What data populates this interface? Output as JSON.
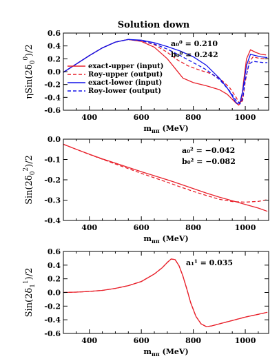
{
  "title": "Solution down",
  "title_color": "#ff0000",
  "colors": {
    "red": "#e8202a",
    "blue": "#1010e8"
  },
  "chart_data": [
    {
      "type": "line",
      "ylabel": "ηSin(2δ₀⁰)/2",
      "ylabel_parts": {
        "pre": "ηSin(2δ",
        "sup": "0",
        "sub": "0",
        "post": ")/2"
      },
      "xlabel": "m_ππ (MeV)",
      "xlim": [
        300,
        1090
      ],
      "ylim": [
        -0.6,
        0.6
      ],
      "yticks": [
        "0.6",
        "0.4",
        "0.2",
        "0.0",
        "-0.2",
        "-0.4",
        "-0.6"
      ],
      "ytick_values": [
        0.6,
        0.4,
        0.2,
        0.0,
        -0.2,
        -0.4,
        -0.6
      ],
      "xticks": [
        "400",
        "600",
        "800",
        "1000"
      ],
      "xtick_values": [
        400,
        600,
        800,
        1000
      ],
      "annotations": [
        "a₀⁰ = 0.210",
        "b₀⁰ = 0.242"
      ],
      "legend": [
        "exact-upper (input)",
        "Roy-upper (output)",
        "exact-lower (input)",
        "Roy-lower (output)"
      ],
      "series": [
        {
          "name": "exact-upper (input)",
          "color": "red",
          "dash": false,
          "x": [
            300,
            350,
            400,
            450,
            500,
            550,
            600,
            650,
            700,
            730,
            760,
            800,
            850,
            900,
            930,
            950,
            965,
            975,
            985,
            995,
            1005,
            1020,
            1040,
            1060,
            1080
          ],
          "y": [
            -0.01,
            0.12,
            0.25,
            0.37,
            0.46,
            0.5,
            0.47,
            0.38,
            0.2,
            0.05,
            -0.1,
            -0.17,
            -0.22,
            -0.28,
            -0.35,
            -0.43,
            -0.49,
            -0.52,
            -0.45,
            -0.1,
            0.2,
            0.34,
            0.3,
            0.27,
            0.26
          ]
        },
        {
          "name": "Roy-upper (output)",
          "color": "red",
          "dash": true,
          "x": [
            300,
            350,
            400,
            450,
            500,
            550,
            600,
            650,
            700,
            740,
            780,
            820,
            860,
            900,
            940,
            965,
            978,
            990,
            1000,
            1015,
            1030,
            1050,
            1070,
            1085
          ],
          "y": [
            -0.01,
            0.12,
            0.25,
            0.37,
            0.46,
            0.5,
            0.48,
            0.42,
            0.3,
            0.18,
            0.09,
            0.03,
            -0.02,
            -0.1,
            -0.25,
            -0.4,
            -0.5,
            -0.45,
            -0.15,
            0.15,
            0.23,
            0.21,
            0.2,
            0.2
          ]
        },
        {
          "name": "exact-lower (input)",
          "color": "blue",
          "dash": false,
          "x": [
            300,
            350,
            400,
            450,
            500,
            550,
            600,
            650,
            700,
            750,
            800,
            850,
            900,
            930,
            950,
            960,
            970,
            980,
            990,
            1005,
            1020,
            1040,
            1060,
            1085
          ],
          "y": [
            -0.01,
            0.12,
            0.25,
            0.37,
            0.46,
            0.5,
            0.49,
            0.45,
            0.39,
            0.32,
            0.23,
            0.1,
            -0.1,
            -0.25,
            -0.38,
            -0.46,
            -0.5,
            -0.47,
            -0.3,
            0.1,
            0.27,
            0.25,
            0.23,
            0.22
          ]
        },
        {
          "name": "Roy-lower (output)",
          "color": "blue",
          "dash": true,
          "x": [
            300,
            350,
            400,
            450,
            500,
            550,
            600,
            650,
            700,
            750,
            800,
            850,
            900,
            940,
            965,
            980,
            990,
            1000,
            1015,
            1030,
            1050,
            1070,
            1085
          ],
          "y": [
            -0.01,
            0.12,
            0.25,
            0.37,
            0.46,
            0.5,
            0.48,
            0.43,
            0.35,
            0.25,
            0.14,
            0.03,
            -0.12,
            -0.3,
            -0.45,
            -0.5,
            -0.42,
            -0.12,
            0.12,
            0.16,
            0.15,
            0.14,
            0.14
          ]
        }
      ]
    },
    {
      "type": "line",
      "ylabel": "Sin(2δ₀²)/2",
      "ylabel_parts": {
        "pre": "Sin(2δ",
        "sup": "2",
        "sub": "0",
        "post": ")/2"
      },
      "xlabel": "m_ππ (MeV)",
      "xlim": [
        300,
        1090
      ],
      "ylim": [
        -0.4,
        0.0
      ],
      "yticks": [
        "0.0",
        "-0.1",
        "-0.2",
        "-0.3",
        "-0.4"
      ],
      "ytick_values": [
        0.0,
        -0.1,
        -0.2,
        -0.3,
        -0.4
      ],
      "xticks": [
        "400",
        "600",
        "800",
        "1000"
      ],
      "xtick_values": [
        400,
        600,
        800,
        1000
      ],
      "annotations": [
        "a₀² = −0.042",
        "b₀² = −0.082"
      ],
      "series": [
        {
          "color": "red",
          "dash": false,
          "x": [
            300,
            350,
            400,
            450,
            500,
            550,
            600,
            650,
            700,
            750,
            800,
            850,
            900,
            950,
            1000,
            1050,
            1085
          ],
          "y": [
            -0.025,
            -0.05,
            -0.074,
            -0.097,
            -0.118,
            -0.139,
            -0.16,
            -0.18,
            -0.2,
            -0.221,
            -0.243,
            -0.265,
            -0.285,
            -0.303,
            -0.321,
            -0.339,
            -0.355
          ]
        },
        {
          "color": "red",
          "dash": true,
          "x": [
            300,
            350,
            400,
            450,
            500,
            550,
            600,
            650,
            700,
            750,
            800,
            850,
            900,
            950,
            1000,
            1050,
            1085
          ],
          "y": [
            -0.025,
            -0.05,
            -0.075,
            -0.099,
            -0.122,
            -0.145,
            -0.168,
            -0.19,
            -0.212,
            -0.235,
            -0.257,
            -0.277,
            -0.296,
            -0.307,
            -0.31,
            -0.306,
            -0.298
          ]
        }
      ]
    },
    {
      "type": "line",
      "ylabel": "Sin(2δ₁¹)/2",
      "ylabel_parts": {
        "pre": "Sin(2δ",
        "sup": "1",
        "sub": "1",
        "post": ")/2"
      },
      "xlabel": "m_ππ (MeV)",
      "xlim": [
        300,
        1090
      ],
      "ylim": [
        -0.6,
        0.6
      ],
      "yticks": [
        "0.6",
        "0.4",
        "0.2",
        "0.0",
        "-0.2",
        "-0.4",
        "-0.6"
      ],
      "ytick_values": [
        0.6,
        0.4,
        0.2,
        0.0,
        -0.2,
        -0.4,
        -0.6
      ],
      "xticks": [
        "400",
        "600",
        "800",
        "1000"
      ],
      "xtick_values": [
        400,
        600,
        800,
        1000
      ],
      "annotations": [
        "a₁¹ = 0.035"
      ],
      "series": [
        {
          "color": "red",
          "dash": false,
          "x": [
            300,
            350,
            400,
            450,
            500,
            550,
            600,
            650,
            680,
            700,
            715,
            730,
            745,
            760,
            775,
            790,
            810,
            830,
            850,
            870,
            900,
            950,
            1000,
            1050,
            1085
          ],
          "y": [
            0.0,
            0.005,
            0.015,
            0.03,
            0.06,
            0.1,
            0.16,
            0.27,
            0.36,
            0.44,
            0.49,
            0.48,
            0.39,
            0.24,
            0.05,
            -0.15,
            -0.35,
            -0.46,
            -0.5,
            -0.49,
            -0.46,
            -0.41,
            -0.36,
            -0.32,
            -0.29
          ]
        },
        {
          "color": "red",
          "dash": true,
          "x": [
            300,
            350,
            400,
            450,
            500,
            550,
            600,
            650,
            680,
            700,
            715,
            730,
            745,
            760,
            775,
            790,
            810,
            830,
            850,
            870,
            900,
            950,
            1000,
            1050,
            1085
          ],
          "y": [
            0.0,
            0.005,
            0.015,
            0.03,
            0.06,
            0.1,
            0.16,
            0.27,
            0.36,
            0.44,
            0.49,
            0.48,
            0.39,
            0.24,
            0.05,
            -0.15,
            -0.35,
            -0.46,
            -0.5,
            -0.49,
            -0.46,
            -0.41,
            -0.36,
            -0.32,
            -0.29
          ]
        }
      ]
    }
  ]
}
